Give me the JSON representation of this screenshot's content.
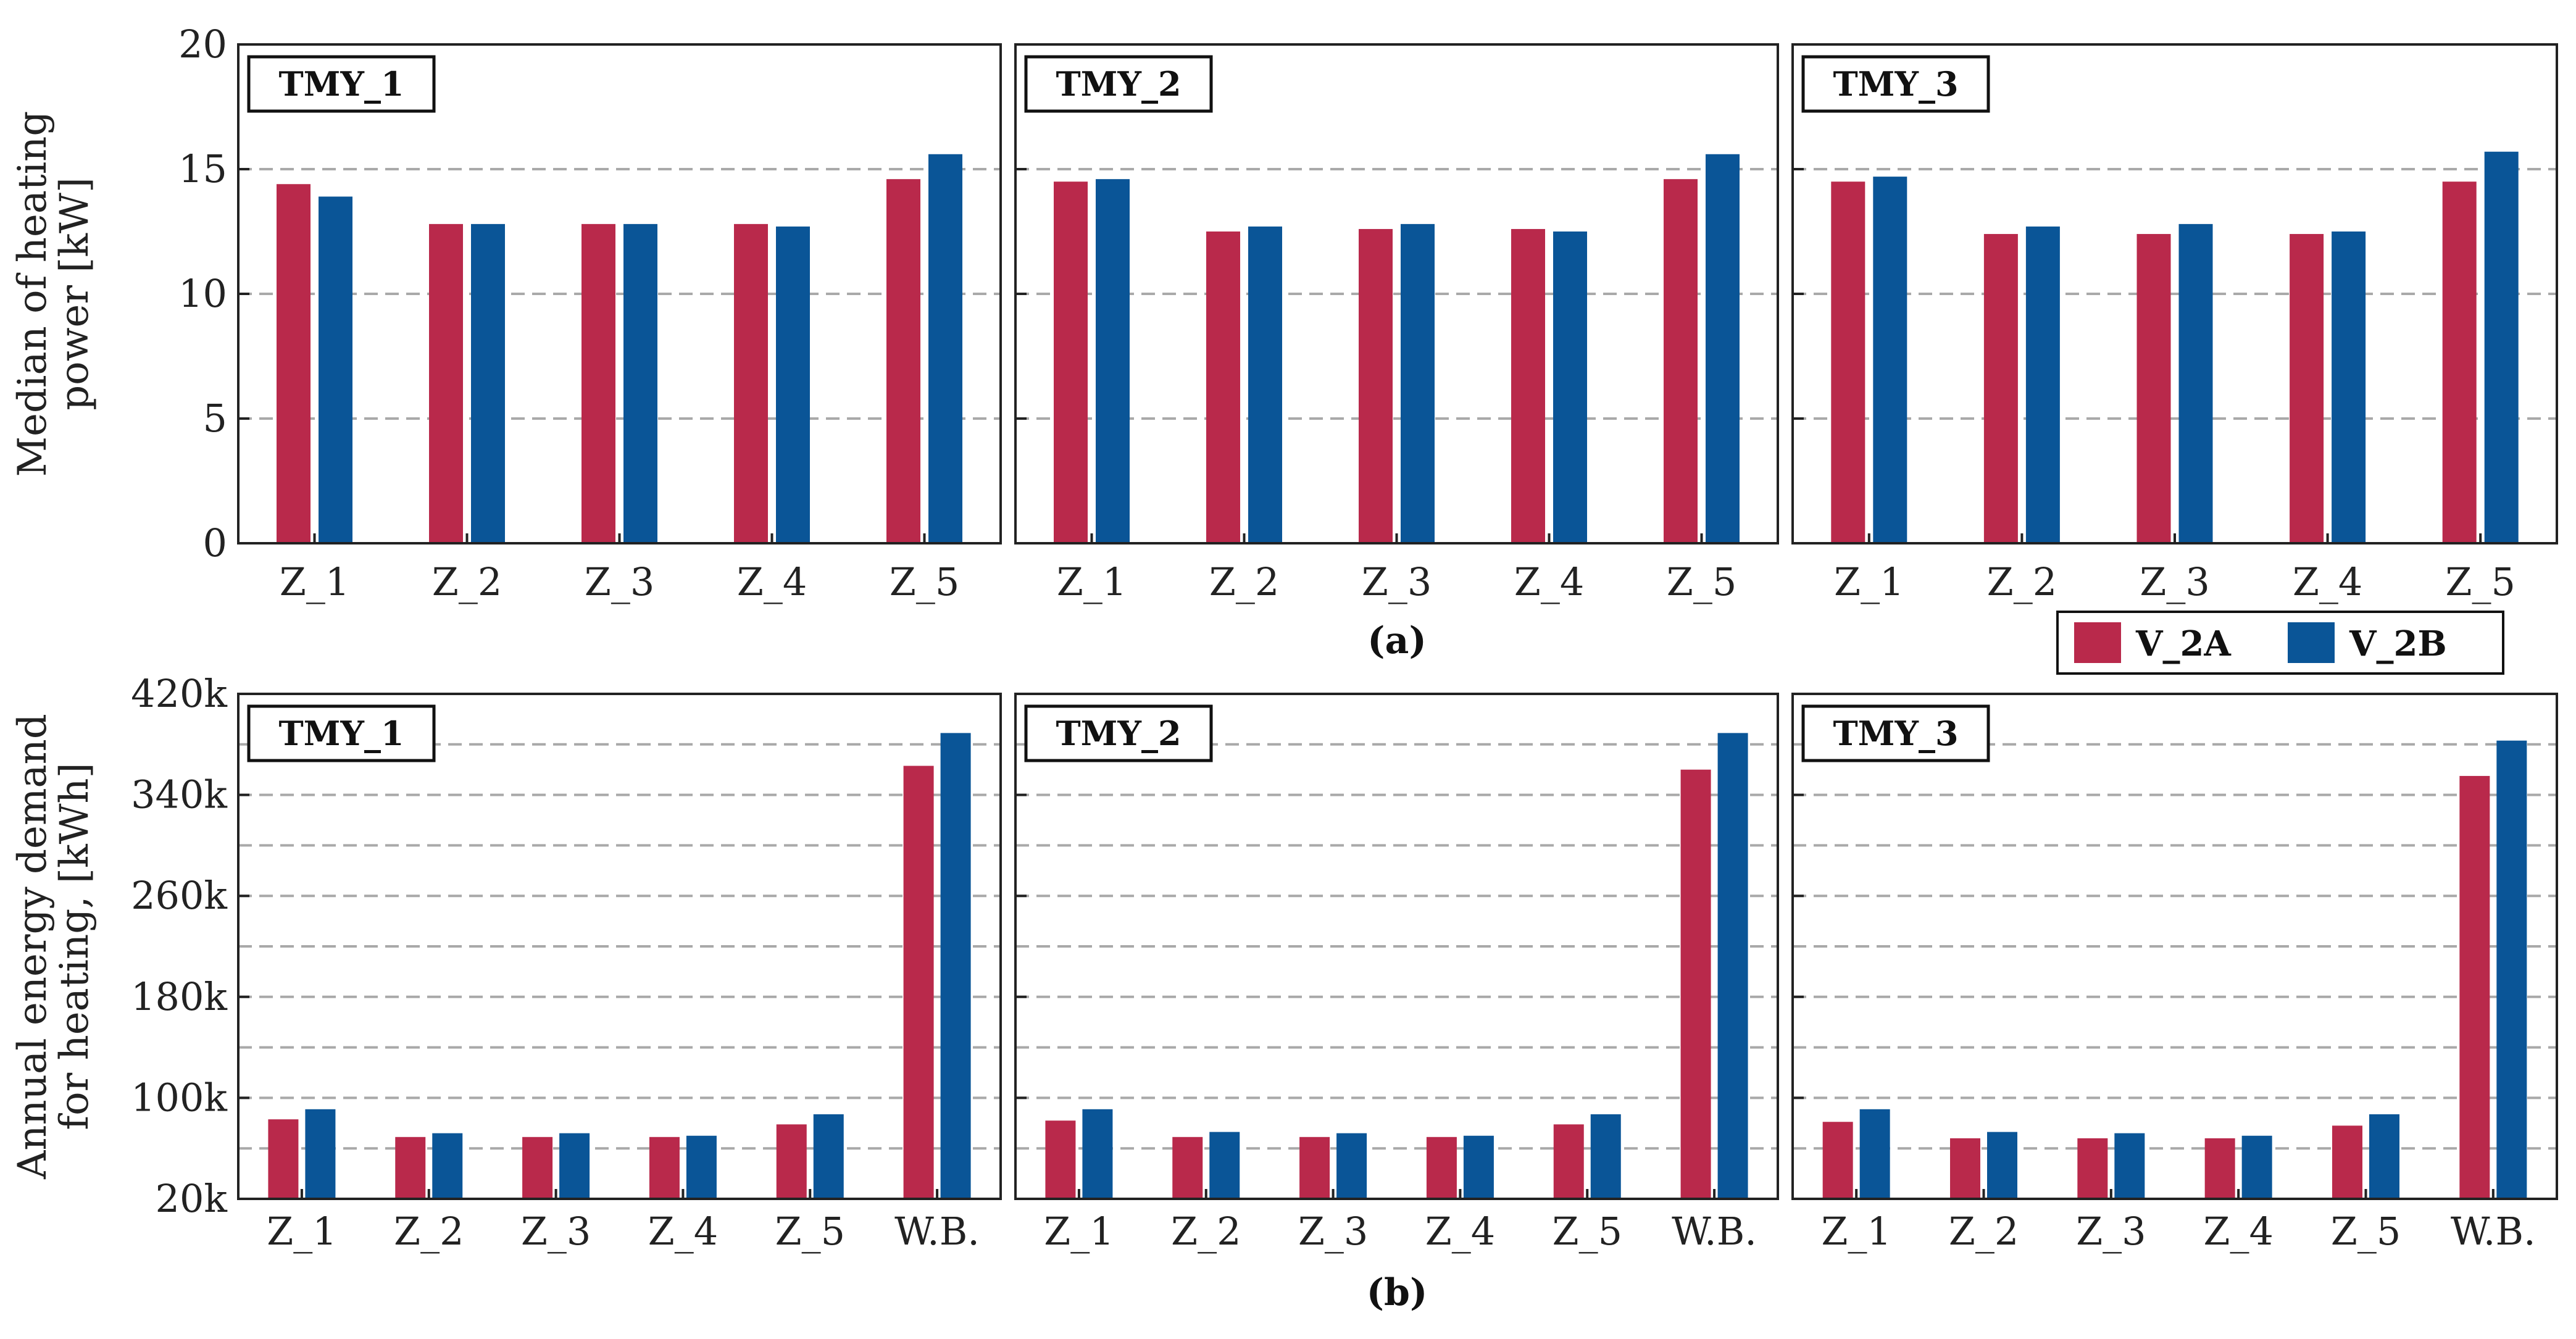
{
  "chart_data": [
    {
      "id": "a",
      "type": "bar",
      "subplot_label": "(a)",
      "ylabel": [
        "Median of heating",
        "power [kW]"
      ],
      "ylim": [
        0,
        20
      ],
      "yticks": [
        0,
        5,
        10,
        15,
        20
      ],
      "ytick_labels": [
        "0",
        "5",
        "10",
        "15",
        "20"
      ],
      "grid_values": [
        5,
        10,
        15
      ],
      "categories": [
        "Z_1",
        "Z_2",
        "Z_3",
        "Z_4",
        "Z_5"
      ],
      "panels": [
        {
          "title": "TMY_1",
          "series": [
            {
              "name": "V_2A",
              "values": [
                14.4,
                12.8,
                12.8,
                12.8,
                14.6
              ]
            },
            {
              "name": "V_2B",
              "values": [
                13.9,
                12.8,
                12.8,
                12.7,
                15.6
              ]
            }
          ]
        },
        {
          "title": "TMY_2",
          "series": [
            {
              "name": "V_2A",
              "values": [
                14.5,
                12.5,
                12.6,
                12.6,
                14.6
              ]
            },
            {
              "name": "V_2B",
              "values": [
                14.6,
                12.7,
                12.8,
                12.5,
                15.6
              ]
            }
          ]
        },
        {
          "title": "TMY_3",
          "series": [
            {
              "name": "V_2A",
              "values": [
                14.5,
                12.4,
                12.4,
                12.4,
                14.5
              ]
            },
            {
              "name": "V_2B",
              "values": [
                14.7,
                12.7,
                12.8,
                12.5,
                15.7
              ]
            }
          ]
        }
      ]
    },
    {
      "id": "b",
      "type": "bar",
      "subplot_label": "(b)",
      "ylabel": [
        "Annual energy demand",
        "for heating, [kWh]"
      ],
      "ylim": [
        20000,
        420000
      ],
      "yticks": [
        20000,
        100000,
        180000,
        260000,
        340000,
        420000
      ],
      "ytick_labels": [
        "20k",
        "100k",
        "180k",
        "260k",
        "340k",
        "420k"
      ],
      "grid_values": [
        60000,
        100000,
        140000,
        180000,
        220000,
        260000,
        300000,
        340000,
        380000
      ],
      "categories": [
        "Z_1",
        "Z_2",
        "Z_3",
        "Z_4",
        "Z_5",
        "W.B."
      ],
      "panels": [
        {
          "title": "TMY_1",
          "series": [
            {
              "name": "V_2A",
              "values": [
                83000,
                69000,
                69000,
                69000,
                79000,
                363000
              ]
            },
            {
              "name": "V_2B",
              "values": [
                91000,
                72000,
                72000,
                70000,
                87000,
                389000
              ]
            }
          ]
        },
        {
          "title": "TMY_2",
          "series": [
            {
              "name": "V_2A",
              "values": [
                82000,
                69000,
                69000,
                69000,
                79000,
                360000
              ]
            },
            {
              "name": "V_2B",
              "values": [
                91000,
                73000,
                72000,
                70000,
                87000,
                389000
              ]
            }
          ]
        },
        {
          "title": "TMY_3",
          "series": [
            {
              "name": "V_2A",
              "values": [
                81000,
                68000,
                68000,
                68000,
                78000,
                355000
              ]
            },
            {
              "name": "V_2B",
              "values": [
                91000,
                73000,
                72000,
                70000,
                87000,
                383000
              ]
            }
          ]
        }
      ]
    }
  ],
  "legend": {
    "placement": "between subplots, bottom-right",
    "entries": [
      {
        "name": "V_2A",
        "color": "#b9294b"
      },
      {
        "name": "V_2B",
        "color": "#0a5597"
      }
    ]
  },
  "colors": {
    "V_2A": "#b9294b",
    "V_2B": "#0a5597"
  }
}
